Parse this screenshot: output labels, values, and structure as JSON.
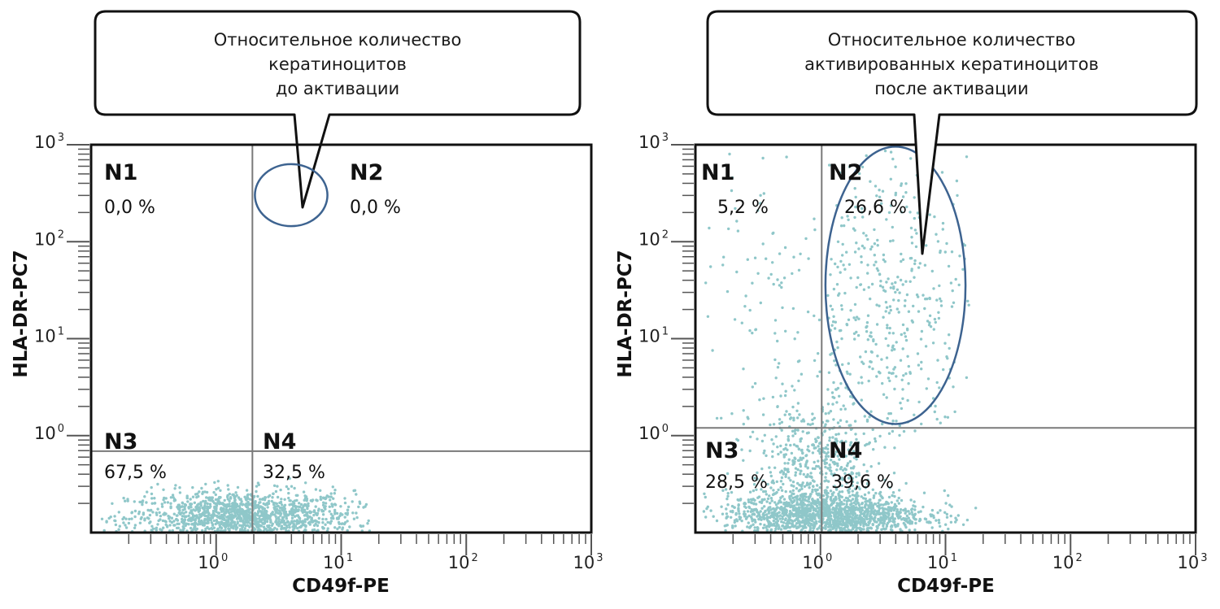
{
  "colors": {
    "dots": "#8fc7c9",
    "gate": "#3d6390",
    "frame": "#111111",
    "quadrant_line": "#7a7a7a",
    "tick": "#555555"
  },
  "chart_data": [
    {
      "type": "scatter",
      "id": "before",
      "title": "",
      "callout": [
        "Относительное количество",
        "кератиноцитов",
        "до активации"
      ],
      "xlabel": "CD49f-PE",
      "ylabel": "HLA-DR-PC7",
      "xscale": "log",
      "yscale": "log",
      "xlim_log10": [
        -1,
        3
      ],
      "ylim_log10": [
        -1,
        3
      ],
      "x_ticks": [
        {
          "base": "10",
          "exp": "0"
        },
        {
          "base": "10",
          "exp": "1"
        },
        {
          "base": "10",
          "exp": "2"
        },
        {
          "base": "10",
          "exp": "3"
        }
      ],
      "y_ticks": [
        {
          "base": "10",
          "exp": "0"
        },
        {
          "base": "10",
          "exp": "1"
        },
        {
          "base": "10",
          "exp": "2"
        },
        {
          "base": "10",
          "exp": "3"
        }
      ],
      "quadrant_threshold_log10": {
        "x": 0.29,
        "y": -0.16
      },
      "quadrants": [
        {
          "name": "N1",
          "percent": "0,0 %"
        },
        {
          "name": "N2",
          "percent": "0,0 %"
        },
        {
          "name": "N3",
          "percent": "67,5 %"
        },
        {
          "name": "N4",
          "percent": "32,5 %"
        }
      ],
      "gate": {
        "shape": "ellipse",
        "center_log10": [
          0.6,
          2.48
        ],
        "radii_log10": [
          0.29,
          0.32
        ]
      },
      "populations": [
        {
          "count": 1300,
          "center_log10": [
            0.2,
            -0.85
          ],
          "spread_log10": [
            0.45,
            0.14
          ],
          "x_range": [
            -0.95,
            1.25
          ],
          "y_range": [
            -0.99,
            -0.42
          ]
        }
      ]
    },
    {
      "type": "scatter",
      "id": "after",
      "title": "",
      "callout": [
        "Относительное количество",
        "активированных кератиноцитов",
        "после активации"
      ],
      "xlabel": "CD49f-PE",
      "ylabel": "HLA-DR-PC7",
      "xscale": "log",
      "yscale": "log",
      "xlim_log10": [
        -1,
        3
      ],
      "ylim_log10": [
        -1,
        3
      ],
      "x_ticks": [
        {
          "base": "10",
          "exp": "0"
        },
        {
          "base": "10",
          "exp": "1"
        },
        {
          "base": "10",
          "exp": "2"
        },
        {
          "base": "10",
          "exp": "3"
        }
      ],
      "y_ticks": [
        {
          "base": "10",
          "exp": "0"
        },
        {
          "base": "10",
          "exp": "1"
        },
        {
          "base": "10",
          "exp": "2"
        },
        {
          "base": "10",
          "exp": "3"
        }
      ],
      "quadrant_threshold_log10": {
        "x": 0.01,
        "y": 0.08
      },
      "quadrants": [
        {
          "name": "N1",
          "percent": "5,2 %"
        },
        {
          "name": "N2",
          "percent": "26,6 %"
        },
        {
          "name": "N3",
          "percent": "28,5 %"
        },
        {
          "name": "N4",
          "percent": "39,6 %"
        }
      ],
      "gate": {
        "shape": "ellipse",
        "center_log10": [
          0.6,
          1.55
        ],
        "radii_log10": [
          0.56,
          1.43
        ]
      },
      "populations": [
        {
          "count": 1400,
          "center_log10": [
            0.05,
            -0.82
          ],
          "spread_log10": [
            0.4,
            0.12
          ],
          "x_range": [
            -0.95,
            1.35
          ],
          "y_range": [
            -0.99,
            -0.3
          ]
        },
        {
          "count": 500,
          "center_log10": [
            -0.05,
            -0.3
          ],
          "spread_log10": [
            0.25,
            0.35
          ],
          "x_range": [
            -0.95,
            1.2
          ],
          "y_range": [
            -0.99,
            1.0
          ]
        },
        {
          "count": 420,
          "center_log10": [
            0.55,
            1.3
          ],
          "spread_log10": [
            0.35,
            0.85
          ],
          "x_range": [
            0.05,
            1.2
          ],
          "y_range": [
            0.0,
            2.95
          ]
        },
        {
          "count": 90,
          "center_log10": [
            -0.35,
            1.2
          ],
          "spread_log10": [
            0.4,
            0.9
          ],
          "x_range": [
            -0.95,
            0.0
          ],
          "y_range": [
            0.1,
            2.95
          ]
        }
      ]
    }
  ]
}
